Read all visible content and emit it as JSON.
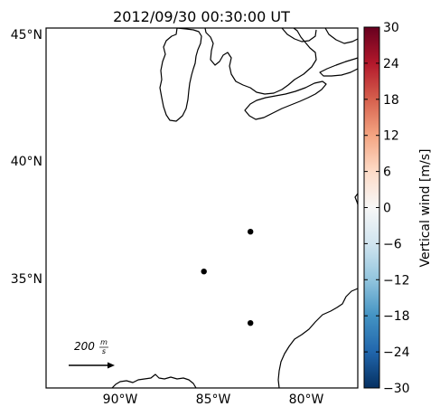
{
  "title": "2012/09/30 00:30:00 UT",
  "map": {
    "lat_ticks": [
      "45°N",
      "40°N",
      "35°N"
    ],
    "lon_ticks": [
      "90°W",
      "85°W",
      "80°W"
    ],
    "stations": [
      {
        "lon": -83.0,
        "lat": 37.0
      },
      {
        "lon": -85.5,
        "lat": 35.3
      },
      {
        "lon": -83.0,
        "lat": 33.1
      }
    ]
  },
  "reference_vector": {
    "value": "200",
    "unit_numerator": "m",
    "unit_denominator": "s"
  },
  "colorbar": {
    "label": "Vertical wind [m/s]",
    "min": -30,
    "max": 30,
    "ticks": [
      "30",
      "24",
      "18",
      "12",
      "6",
      "0",
      "−6",
      "−12",
      "−18",
      "−24",
      "−30"
    ],
    "colormap": "RdBu_r",
    "colors": [
      "#053061",
      "#2166ac",
      "#4393c3",
      "#92c5de",
      "#d1e5f0",
      "#f7f7f7",
      "#fddbc7",
      "#f4a582",
      "#d6604d",
      "#b2182b",
      "#67001f"
    ]
  }
}
